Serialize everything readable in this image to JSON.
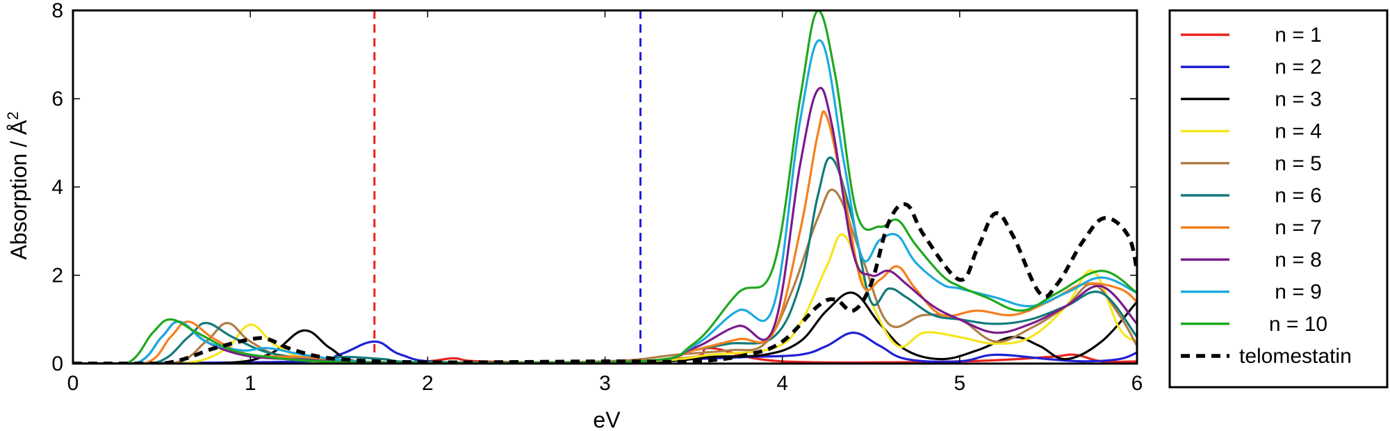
{
  "chart_data": {
    "type": "line",
    "title": "",
    "xlabel": "eV",
    "ylabel": "Absorption / Å²",
    "xlim": [
      0,
      6
    ],
    "ylim": [
      0,
      8
    ],
    "xticks": [
      0,
      1,
      2,
      3,
      4,
      5,
      6
    ],
    "yticks": [
      0,
      2,
      4,
      6,
      8
    ],
    "grid": false,
    "legend_position": "right-outside",
    "vertical_lines": [
      {
        "x": 1.7,
        "color": "#e8221c",
        "style": "dashed"
      },
      {
        "x": 3.2,
        "color": "#1f1fd6",
        "style": "dashed"
      }
    ],
    "series": [
      {
        "name": "n = 1",
        "color": "#e8221c",
        "dashed": false,
        "x": [
          0,
          1.7,
          2.0,
          2.15,
          2.3,
          3.0,
          3.5,
          3.6,
          4.0,
          5.0,
          5.5,
          5.65,
          5.8,
          6.0
        ],
        "y": [
          0,
          0,
          0.05,
          0.12,
          0.05,
          0.02,
          0.15,
          0.35,
          0.05,
          0.05,
          0.15,
          0.2,
          0.05,
          0.05
        ]
      },
      {
        "name": "n = 2",
        "color": "#1f1fd6",
        "dashed": false,
        "x": [
          0,
          1.3,
          1.5,
          1.7,
          1.85,
          2.1,
          3.0,
          3.5,
          3.8,
          4.1,
          4.25,
          4.4,
          4.55,
          4.7,
          5.0,
          5.2,
          5.5,
          5.7,
          5.9,
          6.0
        ],
        "y": [
          0,
          0.05,
          0.2,
          0.5,
          0.2,
          0.03,
          0.02,
          0.1,
          0.15,
          0.2,
          0.4,
          0.7,
          0.4,
          0.1,
          0.05,
          0.2,
          0.1,
          0.05,
          0.1,
          0.25
        ]
      },
      {
        "name": "n = 3",
        "color": "#000000",
        "dashed": false,
        "x": [
          0,
          0.8,
          1.1,
          1.3,
          1.45,
          1.6,
          2.0,
          3.2,
          3.6,
          3.9,
          4.1,
          4.25,
          4.4,
          4.55,
          4.7,
          4.9,
          5.1,
          5.3,
          5.45,
          5.6,
          5.8,
          6.0
        ],
        "y": [
          0,
          0,
          0.2,
          0.75,
          0.35,
          0.05,
          0.02,
          0.03,
          0.15,
          0.2,
          0.5,
          1.2,
          1.6,
          0.9,
          0.3,
          0.1,
          0.3,
          0.6,
          0.4,
          0.1,
          0.5,
          1.4
        ]
      },
      {
        "name": "n = 4",
        "color": "#f5e61c",
        "dashed": false,
        "x": [
          0,
          0.6,
          0.85,
          1.0,
          1.15,
          1.4,
          2.0,
          3.2,
          3.6,
          3.95,
          4.1,
          4.25,
          4.35,
          4.5,
          4.65,
          4.8,
          5.0,
          5.2,
          5.4,
          5.6,
          5.75,
          5.9,
          6.0
        ],
        "y": [
          0,
          0,
          0.3,
          0.88,
          0.4,
          0.05,
          0.02,
          0.05,
          0.2,
          0.35,
          0.9,
          2.2,
          2.9,
          1.4,
          0.4,
          0.7,
          0.6,
          0.45,
          0.6,
          1.3,
          2.1,
          0.8,
          0.5
        ]
      },
      {
        "name": "n = 5",
        "color": "#b07d45",
        "dashed": false,
        "x": [
          0,
          0.55,
          0.75,
          0.87,
          1.0,
          1.2,
          1.6,
          2.0,
          3.0,
          3.4,
          3.7,
          3.9,
          4.05,
          4.2,
          4.3,
          4.45,
          4.6,
          4.8,
          5.0,
          5.2,
          5.4,
          5.6,
          5.75,
          5.9,
          6.0
        ],
        "y": [
          0,
          0,
          0.5,
          0.92,
          0.5,
          0.15,
          0.05,
          0.02,
          0.05,
          0.2,
          0.3,
          0.45,
          1.6,
          3.3,
          3.9,
          2.4,
          0.9,
          1.1,
          1.0,
          0.5,
          0.8,
          1.3,
          1.8,
          1.1,
          0.4
        ]
      },
      {
        "name": "n = 6",
        "color": "#127a7a",
        "dashed": false,
        "x": [
          0,
          0.45,
          0.65,
          0.75,
          0.9,
          1.1,
          1.35,
          1.55,
          1.75,
          2.0,
          3.2,
          3.5,
          3.7,
          3.95,
          4.1,
          4.2,
          4.28,
          4.4,
          4.5,
          4.6,
          4.7,
          4.85,
          5.0,
          5.2,
          5.4,
          5.6,
          5.8,
          6.0
        ],
        "y": [
          0,
          0,
          0.6,
          0.92,
          0.6,
          0.25,
          0.12,
          0.15,
          0.1,
          0.03,
          0.05,
          0.3,
          0.45,
          0.6,
          1.8,
          3.8,
          4.65,
          3.2,
          1.4,
          1.7,
          1.5,
          1.1,
          1.0,
          0.9,
          1.0,
          1.3,
          1.6,
          0.6
        ]
      },
      {
        "name": "n = 7",
        "color": "#f47f1e",
        "dashed": false,
        "x": [
          0,
          0.4,
          0.55,
          0.65,
          0.8,
          1.0,
          1.3,
          1.6,
          2.0,
          3.2,
          3.5,
          3.75,
          3.95,
          4.1,
          4.2,
          4.25,
          4.35,
          4.45,
          4.55,
          4.65,
          4.75,
          4.9,
          5.1,
          5.3,
          5.5,
          5.7,
          5.9,
          6.0
        ],
        "y": [
          0,
          0,
          0.6,
          0.95,
          0.55,
          0.2,
          0.15,
          0.05,
          0.02,
          0.05,
          0.3,
          0.55,
          0.7,
          3.0,
          5.2,
          5.6,
          3.8,
          1.8,
          1.9,
          2.2,
          1.7,
          1.1,
          1.2,
          1.1,
          1.4,
          1.8,
          1.7,
          1.4
        ]
      },
      {
        "name": "n = 8",
        "color": "#7a1a8c",
        "dashed": false,
        "x": [
          0,
          0.35,
          0.5,
          0.6,
          0.75,
          0.95,
          1.2,
          1.5,
          2.0,
          3.2,
          3.5,
          3.75,
          3.95,
          4.1,
          4.2,
          4.28,
          4.4,
          4.5,
          4.6,
          4.7,
          4.85,
          5.0,
          5.2,
          5.4,
          5.6,
          5.8,
          6.0
        ],
        "y": [
          0,
          0,
          0.6,
          0.95,
          0.5,
          0.2,
          0.1,
          0.05,
          0.02,
          0.05,
          0.35,
          0.85,
          0.8,
          4.5,
          6.2,
          5.4,
          2.5,
          2.0,
          2.1,
          1.8,
          1.3,
          1.0,
          0.7,
          0.9,
          1.3,
          1.75,
          0.9
        ]
      },
      {
        "name": "n = 9",
        "color": "#1caae0",
        "dashed": false,
        "x": [
          0,
          0.35,
          0.5,
          0.6,
          0.75,
          0.95,
          1.1,
          1.3,
          1.6,
          2.0,
          3.2,
          3.5,
          3.75,
          3.95,
          4.1,
          4.22,
          4.35,
          4.45,
          4.55,
          4.65,
          4.75,
          4.9,
          5.0,
          5.2,
          5.4,
          5.6,
          5.8,
          6.0
        ],
        "y": [
          0,
          0,
          0.6,
          0.95,
          0.5,
          0.3,
          0.35,
          0.2,
          0.05,
          0.02,
          0.05,
          0.4,
          1.2,
          1.3,
          5.5,
          7.3,
          4.5,
          2.4,
          2.8,
          2.9,
          2.3,
          1.8,
          1.7,
          1.5,
          1.3,
          1.6,
          1.95,
          1.6
        ]
      },
      {
        "name": "n = 10",
        "color": "#1fa81f",
        "dashed": false,
        "x": [
          0,
          0.3,
          0.45,
          0.55,
          0.7,
          0.9,
          1.1,
          1.4,
          2.0,
          3.2,
          3.5,
          3.75,
          3.95,
          4.1,
          4.2,
          4.3,
          4.42,
          4.55,
          4.65,
          4.75,
          4.9,
          5.0,
          5.15,
          5.35,
          5.55,
          5.8,
          6.0
        ],
        "y": [
          0,
          0,
          0.7,
          1.0,
          0.7,
          0.3,
          0.15,
          0.05,
          0.02,
          0.05,
          0.45,
          1.6,
          2.2,
          6.0,
          8.0,
          6.5,
          3.4,
          3.1,
          3.25,
          2.7,
          2.0,
          1.75,
          1.5,
          1.2,
          1.6,
          2.1,
          1.6
        ]
      },
      {
        "name": "telomestatin",
        "color": "#000000",
        "dashed": true,
        "x": [
          0,
          0.5,
          0.8,
          1.0,
          1.1,
          1.25,
          1.5,
          2.0,
          3.0,
          3.5,
          3.8,
          4.0,
          4.2,
          4.3,
          4.4,
          4.5,
          4.6,
          4.7,
          4.8,
          5.0,
          5.1,
          5.2,
          5.3,
          5.45,
          5.55,
          5.7,
          5.82,
          5.95,
          6.0
        ],
        "y": [
          0,
          0,
          0.35,
          0.55,
          0.55,
          0.3,
          0.1,
          0.03,
          0.05,
          0.05,
          0.2,
          0.5,
          1.3,
          1.45,
          1.2,
          1.8,
          3.2,
          3.6,
          2.9,
          1.9,
          2.6,
          3.4,
          2.9,
          1.6,
          1.8,
          2.8,
          3.3,
          2.9,
          2.1
        ]
      }
    ]
  }
}
